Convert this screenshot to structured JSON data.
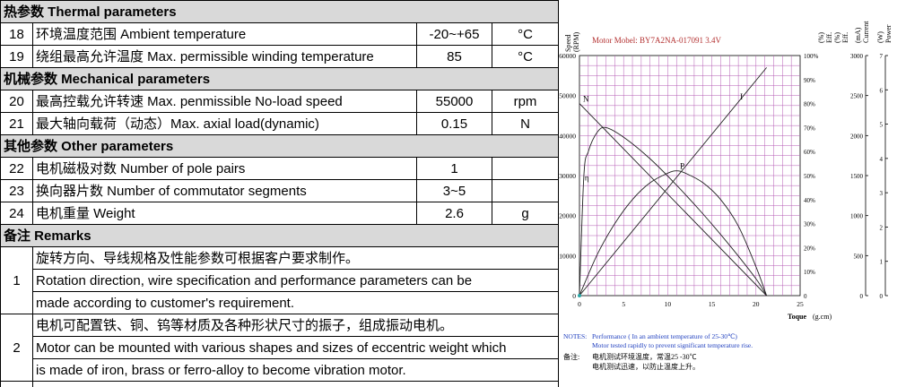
{
  "table": {
    "sec_thermal": "热参数  Thermal parameters",
    "r18": {
      "no": "18",
      "label": "环境温度范围  Ambient temperature",
      "value": "-20~+65",
      "unit": "°C"
    },
    "r19": {
      "no": "19",
      "label": "绕组最高允许温度  Max. permissible winding temperature",
      "value": "85",
      "unit": "°C"
    },
    "sec_mech": "机械参数 Mechanical parameters",
    "r20": {
      "no": "20",
      "label": "最高控载允许转速 Max. penmissible No-load speed",
      "value": "55000",
      "unit": "rpm"
    },
    "r21": {
      "no": "21",
      "label": "最大轴向载荷（动态）Max. axial load(dynamic)",
      "value": "0.15",
      "unit": "N"
    },
    "sec_other": "其他参数  Other parameters",
    "r22": {
      "no": "22",
      "label": "电机磁极对数  Number of pole pairs",
      "value": "1",
      "unit": ""
    },
    "r23": {
      "no": "23",
      "label": "换向器片数  Number of commutator segments",
      "value": "3~5",
      "unit": ""
    },
    "r24": {
      "no": "24",
      "label": "电机重量 Weight",
      "value": "2.6",
      "unit": "g"
    },
    "sec_remarks": "备注 Remarks",
    "rem1": {
      "no": "1",
      "zh": "旋转方向、导线规格及性能参数可根据客户要求制作。",
      "en1": "Rotation direction, wire specification and performance parameters can be",
      "en2": "made according to customer's requirement."
    },
    "rem2": {
      "no": "2",
      "zh": "电机可配置铁、铜、钨等材质及各种形状尺寸的振子，组成振动电机。",
      "en1": "Motor can be mounted with various shapes and sizes of eccentric weight which",
      "en2": "is made of iron, brass or ferro-alloy to become vibration motor."
    }
  },
  "chart": {
    "model_text": "Motor Mobel: BY7A2NA-017091    3.4V",
    "left_axis_title": [
      "Speed",
      "(RPM)"
    ],
    "right_axis_titles": [
      [
        "(%)",
        "Eff."
      ],
      [
        "(%)",
        "Eff."
      ],
      [
        "(mA)",
        "Current"
      ],
      [
        "(W)",
        "Power"
      ]
    ],
    "xlabel": "Toque",
    "xunit": "(g.cm)",
    "notes_label": "NOTES:",
    "notes_line1": "Performance ( In an ambient temperature of 25-30℃)",
    "notes_line2": "Motor tested rapidly to prevent significant temperature rise.",
    "cn_label": "备注:",
    "cn_line1": "电机测试环境温度，常温25 -30℃",
    "cn_line2": "电机测试迅速，以防止温度上升。",
    "colors": {
      "grid": "#b45ab4",
      "notes": "#1f3fbf",
      "model": "#b33030"
    }
  },
  "chart_data": {
    "type": "line",
    "x": [
      0,
      5,
      10,
      15,
      20,
      21.2
    ],
    "xlim": [
      0,
      25
    ],
    "x_ticks": [
      0,
      5,
      10,
      15,
      20,
      25
    ],
    "y_speed_ticks": [
      0,
      10000,
      20000,
      30000,
      40000,
      50000,
      60000
    ],
    "y_eff_ticks": [
      "0",
      "10%",
      "20%",
      "30%",
      "40%",
      "50%",
      "60%",
      "70%",
      "80%",
      "90%",
      "100%"
    ],
    "y_current_ticks": [
      0,
      500,
      1000,
      1500,
      2000,
      2500,
      3000
    ],
    "y_power_ticks": [
      0,
      1,
      2,
      3,
      4,
      5,
      6,
      7
    ],
    "series": [
      {
        "name": "N",
        "axis": "speed",
        "x": [
          0,
          21.2
        ],
        "values": [
          48000,
          0
        ]
      },
      {
        "name": "I",
        "axis": "current",
        "x": [
          0,
          21.2
        ],
        "values": [
          0,
          2850
        ]
      },
      {
        "name": "P",
        "axis": "eff",
        "x": [
          0,
          2,
          4,
          6,
          8,
          10,
          11,
          12,
          14,
          16,
          18,
          20,
          21.2
        ],
        "values": [
          0,
          17,
          30,
          40,
          47,
          51,
          52,
          51,
          47,
          40,
          29,
          12,
          0
        ]
      },
      {
        "name": "η",
        "axis": "eff",
        "x": [
          0,
          0.5,
          1,
          2,
          3,
          5,
          8,
          11,
          14,
          17,
          20,
          21.2
        ],
        "values": [
          0,
          50,
          60,
          68,
          70,
          66,
          57,
          46,
          34,
          21,
          7,
          0
        ]
      }
    ]
  }
}
